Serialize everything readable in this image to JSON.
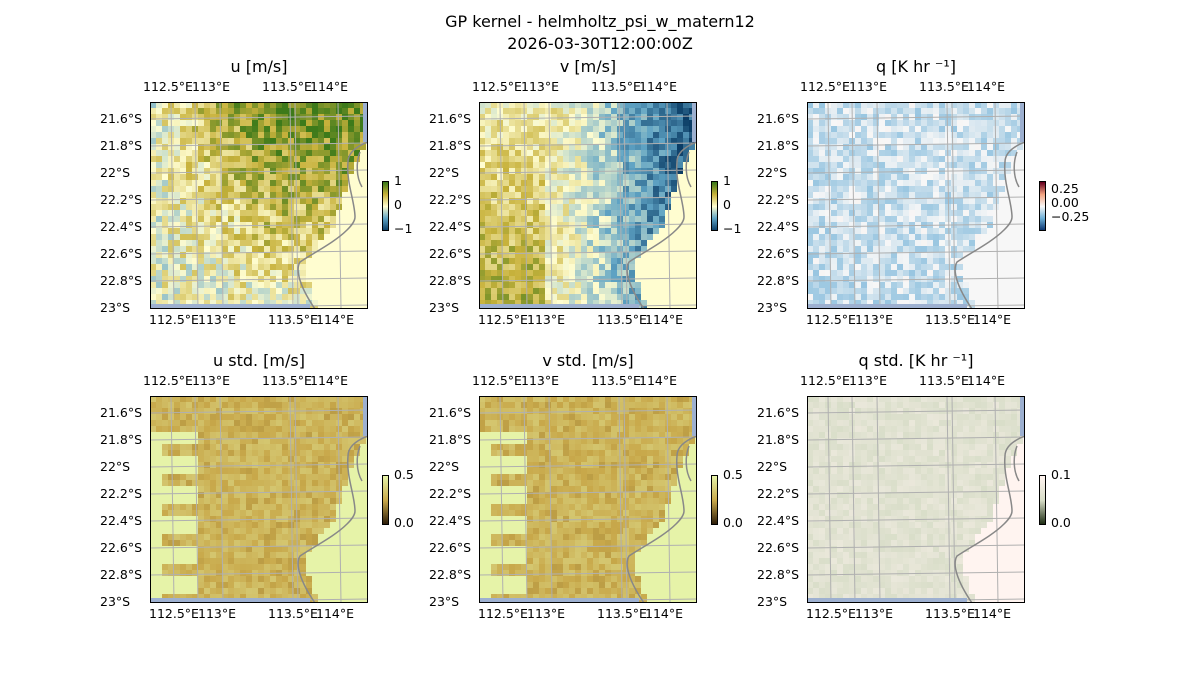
{
  "figure": {
    "title_line1": "GP kernel - helmholtz_psi_w_matern12",
    "title_line2": "2026-03-30T12:00:00Z"
  },
  "chart_data": [
    {
      "type": "heatmap",
      "title": "u [m/s]",
      "xticks": [
        "112.5°E",
        "113°E",
        "113.5°E",
        "114°E"
      ],
      "yticks": [
        "21.6°S",
        "21.8°S",
        "22°S",
        "22.2°S",
        "22.4°S",
        "22.6°S",
        "22.8°S",
        "23°S"
      ],
      "colorbar": {
        "ticks": [
          "1",
          "0",
          "−1"
        ],
        "range": [
          -1,
          1
        ]
      },
      "colormap": [
        "#0b3d66",
        "#5fa3c4",
        "#fffdd0",
        "#c8b23c",
        "#3d7a1a"
      ]
    },
    {
      "type": "heatmap",
      "title": "v [m/s]",
      "xticks": [
        "112.5°E",
        "113°E",
        "113.5°E",
        "114°E"
      ],
      "yticks": [
        "21.6°S",
        "21.8°S",
        "22°S",
        "22.2°S",
        "22.4°S",
        "22.6°S",
        "22.8°S",
        "23°S"
      ],
      "colorbar": {
        "ticks": [
          "1",
          "0",
          "−1"
        ],
        "range": [
          -1,
          1
        ]
      },
      "colormap": [
        "#0b3d66",
        "#5fa3c4",
        "#fffdd0",
        "#c8b23c",
        "#3d7a1a"
      ]
    },
    {
      "type": "heatmap",
      "title": "q [K hr ⁻¹]",
      "xticks": [
        "112.5°E",
        "113°E",
        "113.5°E",
        "114°E"
      ],
      "yticks": [
        "21.6°S",
        "21.8°S",
        "22°S",
        "22.2°S",
        "22.4°S",
        "22.6°S",
        "22.8°S",
        "23°S"
      ],
      "colorbar": {
        "ticks": [
          "0.25",
          "0.00",
          "−0.25"
        ],
        "range": [
          -0.3,
          0.3
        ]
      },
      "colormap": [
        "#08306b",
        "#6baed6",
        "#f7f7f7",
        "#f4a582",
        "#67001f"
      ]
    },
    {
      "type": "heatmap",
      "title": "u std. [m/s]",
      "xticks": [
        "112.5°E",
        "113°E",
        "113.5°E",
        "114°E"
      ],
      "yticks": [
        "21.6°S",
        "21.8°S",
        "22°S",
        "22.2°S",
        "22.4°S",
        "22.6°S",
        "22.8°S",
        "23°S"
      ],
      "colorbar": {
        "ticks": [
          "0.5",
          "0.0"
        ],
        "range": [
          0,
          0.5
        ]
      },
      "colormap": [
        "#2a1a08",
        "#c8a84a",
        "#e6f3a8"
      ]
    },
    {
      "type": "heatmap",
      "title": "v std. [m/s]",
      "xticks": [
        "112.5°E",
        "113°E",
        "113.5°E",
        "114°E"
      ],
      "yticks": [
        "21.6°S",
        "21.8°S",
        "22°S",
        "22.2°S",
        "22.4°S",
        "22.6°S",
        "22.8°S",
        "23°S"
      ],
      "colorbar": {
        "ticks": [
          "0.5",
          "0.0"
        ],
        "range": [
          0,
          0.5
        ]
      },
      "colormap": [
        "#2a1a08",
        "#c8a84a",
        "#e6f3a8"
      ]
    },
    {
      "type": "heatmap",
      "title": "q std. [K hr ⁻¹]",
      "xticks": [
        "112.5°E",
        "113°E",
        "113.5°E",
        "114°E"
      ],
      "yticks": [
        "21.6°S",
        "21.8°S",
        "22°S",
        "22.2°S",
        "22.4°S",
        "22.6°S",
        "22.8°S",
        "23°S"
      ],
      "colorbar": {
        "ticks": [
          "0.1",
          "0.0"
        ],
        "range": [
          0,
          0.1
        ]
      },
      "colormap": [
        "#1a2a10",
        "#d6dcc6",
        "#fff4f0"
      ]
    }
  ]
}
